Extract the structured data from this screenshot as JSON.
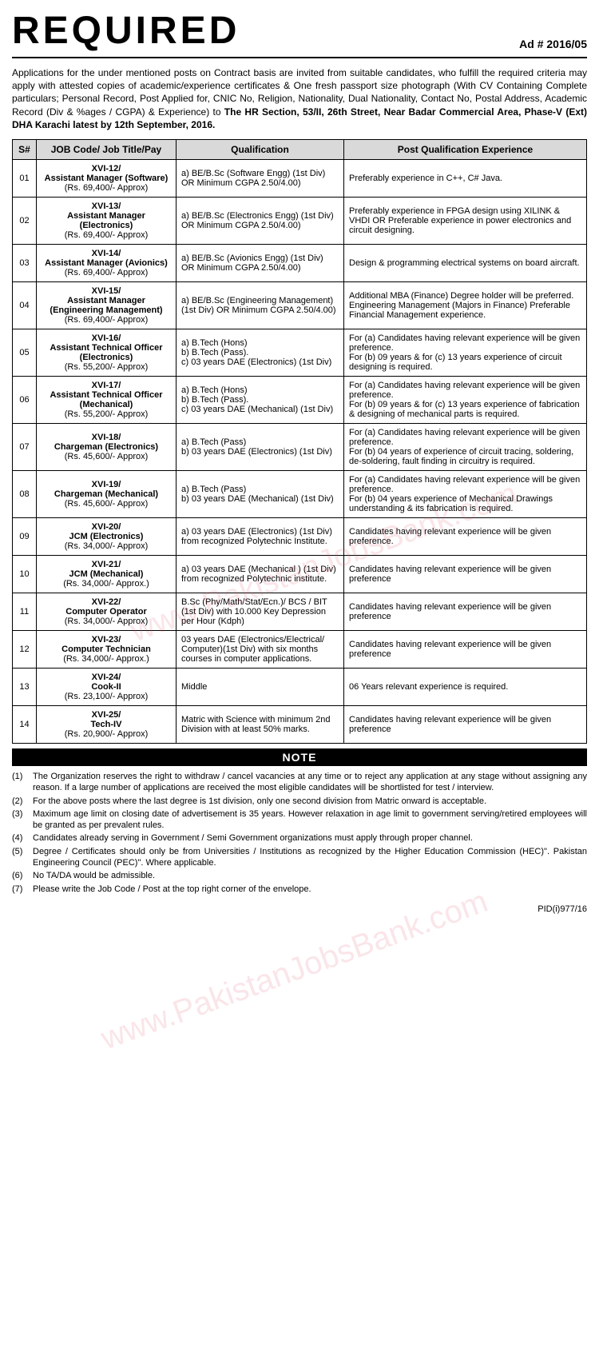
{
  "header": {
    "title": "REQUIRED",
    "ad_number": "Ad # 2016/05"
  },
  "intro": {
    "text_before": "Applications for the under mentioned posts on Contract basis are invited from suitable candidates, who fulfill the required criteria may apply with attested copies of academic/experience certificates & One fresh passport size photograph (With CV Containing Complete particulars; Personal Record, Post Applied for, CNIC No, Religion, Nationality, Dual Nationality, Contact No, Postal Address, Academic Record (Div & %ages / CGPA) & Experience) to ",
    "text_bold": "The HR Section, 53/II, 26th Street, Near Badar Commercial Area, Phase-V (Ext) DHA Karachi latest by 12th September, 2016."
  },
  "table": {
    "columns": [
      "S#",
      "JOB Code/ Job Title/Pay",
      "Qualification",
      "Post Qualification Experience"
    ],
    "rows": [
      {
        "sn": "01",
        "code": "XVI-12/",
        "title": "Assistant Manager (Software)",
        "pay": "(Rs. 69,400/- Approx)",
        "qual": "a)  BE/B.Sc (Software Engg) (1st Div) OR Minimum CGPA 2.50/4.00)",
        "exp": "Preferably experience in C++, C# Java."
      },
      {
        "sn": "02",
        "code": "XVI-13/",
        "title": "Assistant Manager (Electronics)",
        "pay": "(Rs. 69,400/- Approx)",
        "qual": "a)  BE/B.Sc (Electronics Engg) (1st Div) OR Minimum CGPA 2.50/4.00)",
        "exp": "Preferably experience in FPGA design using XILINK & VHDI OR Preferable experience in power electronics and circuit designing."
      },
      {
        "sn": "03",
        "code": "XVI-14/",
        "title": "Assistant Manager (Avionics)",
        "pay": "(Rs. 69,400/- Approx)",
        "qual": "a)  BE/B.Sc (Avionics Engg) (1st Div) OR Minimum CGPA 2.50/4.00)",
        "exp": "Design & programming electrical systems on board aircraft."
      },
      {
        "sn": "04",
        "code": "XVI-15/",
        "title": "Assistant Manager (Engineering Management)",
        "pay": "(Rs. 69,400/- Approx)",
        "qual": "a)  BE/B.Sc (Engineering Management) (1st Div) OR Minimum CGPA 2.50/4.00)",
        "exp": "Additional MBA (Finance) Degree holder will be preferred. Engineering Management (Majors in Finance) Preferable Financial Management experience."
      },
      {
        "sn": "05",
        "code": "XVI-16/",
        "title": "Assistant Technical Officer (Electronics)",
        "pay": "(Rs. 55,200/- Approx)",
        "qual": "a)  B.Tech (Hons)\nb)  B.Tech (Pass).\nc)  03 years DAE (Electronics) (1st Div)",
        "exp": "For (a) Candidates having relevant experience will be given preference.\nFor (b) 09 years & for (c) 13 years experience of circuit designing is required."
      },
      {
        "sn": "06",
        "code": "XVI-17/",
        "title": "Assistant Technical Officer (Mechanical)",
        "pay": "(Rs. 55,200/- Approx)",
        "qual": "a)  B.Tech (Hons)\nb)  B.Tech (Pass).\nc)  03 years DAE (Mechanical) (1st Div)",
        "exp": "For (a) Candidates having relevant experience will be given preference.\nFor (b) 09 years & for (c) 13 years experience of fabrication & designing of mechanical parts is required."
      },
      {
        "sn": "07",
        "code": "XVI-18/",
        "title": "Chargeman (Electronics)",
        "pay": "(Rs. 45,600/- Approx)",
        "qual": "a)  B.Tech (Pass)\nb)  03 years DAE (Electronics) (1st Div)",
        "exp": "For (a) Candidates having relevant experience will be given preference.\nFor (b) 04 years of experience of circuit tracing, soldering, de-soldering, fault finding in circuitry is required."
      },
      {
        "sn": "08",
        "code": "XVI-19/",
        "title": "Chargeman (Mechanical)",
        "pay": "(Rs. 45,600/- Approx)",
        "qual": "a)  B.Tech (Pass)\nb)  03 years DAE (Mechanical) (1st Div)",
        "exp": "For (a) Candidates having relevant experience will be given preference.\nFor (b) 04 years experience of Mechanical Drawings understanding & its fabrication is required."
      },
      {
        "sn": "09",
        "code": "XVI-20/",
        "title": "JCM (Electronics)",
        "pay": "(Rs. 34,000/- Approx)",
        "qual": "a)  03 years DAE (Electronics) (1st Div) from recognized Polytechnic Institute.",
        "exp": "Candidates having relevant experience will be given preference."
      },
      {
        "sn": "10",
        "code": "XVI-21/",
        "title": "JCM (Mechanical)",
        "pay": "(Rs. 34,000/- Approx.)",
        "qual": "a)  03 years DAE (Mechanical ) (1st Div) from recognized Polytechnic institute.",
        "exp": "Candidates having relevant experience will be given preference"
      },
      {
        "sn": "11",
        "code": "XVI-22/",
        "title": "Computer Operator",
        "pay": "(Rs. 34,000/- Approx)",
        "qual": "B.Sc (Phy/Math/Stat/Ecn.)/ BCS / BIT (1st Div) with 10.000 Key Depression per Hour (Kdph)",
        "exp": "Candidates having relevant experience will be given preference"
      },
      {
        "sn": "12",
        "code": "XVI-23/",
        "title": "Computer Technician",
        "pay": "(Rs. 34,000/- Approx.)",
        "qual": "03 years DAE (Electronics/Electrical/ Computer)(1st Div) with six months courses in computer applications.",
        "exp": "Candidates having relevant experience will be given preference"
      },
      {
        "sn": "13",
        "code": "XVI-24/",
        "title": "Cook-II",
        "pay": "(Rs. 23,100/- Approx)",
        "qual": "Middle",
        "exp": "06 Years relevant experience is required."
      },
      {
        "sn": "14",
        "code": "XVI-25/",
        "title": "Tech-IV",
        "pay": "(Rs. 20,900/- Approx)",
        "qual": "Matric with Science with minimum 2nd Division with at least 50% marks.",
        "exp": "Candidates having relevant experience will be given preference"
      }
    ]
  },
  "note_header": "NOTE",
  "notes": [
    "The Organization reserves the right to withdraw / cancel vacancies at any time or to reject any application at any stage without assigning any reason. If a large number of applications are received the most eligible candidates will be shortlisted for test / interview.",
    "For the above posts where the last degree is 1st division, only one second division from Matric onward is acceptable.",
    "Maximum age limit on closing date of advertisement is 35 years. However relaxation in age limit to government serving/retired employees will be granted as per prevalent rules.",
    "Candidates already serving in Government / Semi Government organizations must apply through proper channel.",
    "Degree / Certificates should only be from Universities / Institutions as recognized by the Higher Education Commission (HEC)\". Pakistan Engineering Council (PEC)\". Where applicable.",
    "No TA/DA would be admissible.",
    "Please write the Job Code / Post at the top right corner of the envelope."
  ],
  "footer": "PID(i)977/16",
  "watermark": "www.PakistanJobsBank.com"
}
